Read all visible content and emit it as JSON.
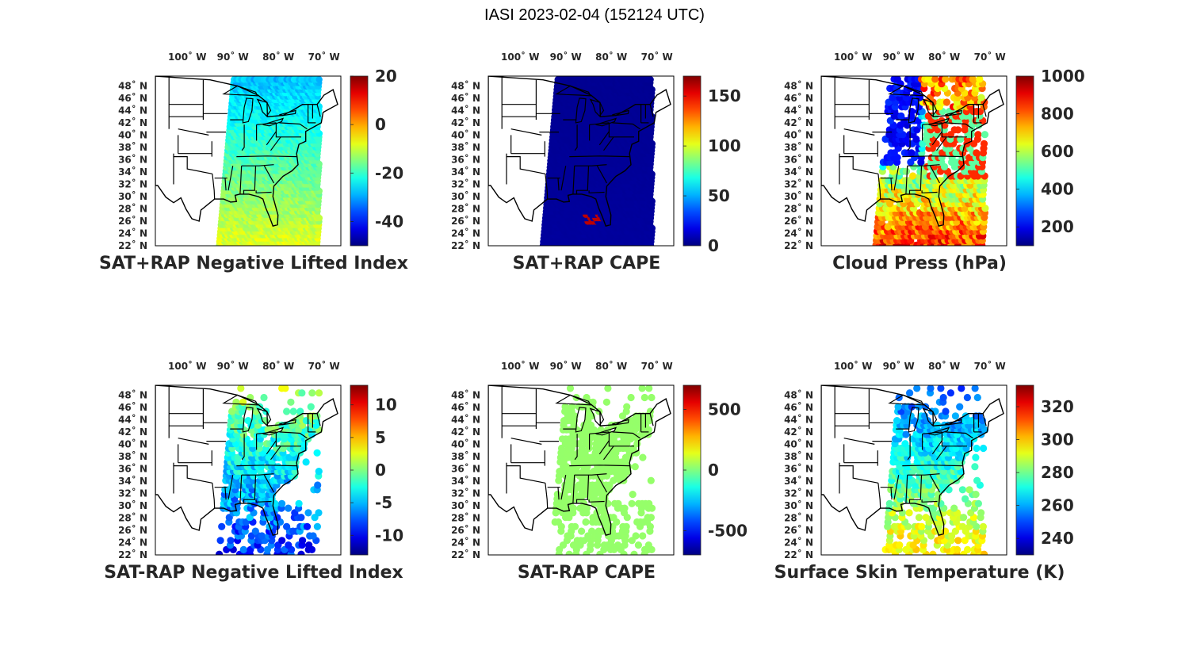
{
  "figure": {
    "title": "IASI 2023-02-04 (152124 UTC)"
  },
  "map_axes": {
    "lon_labels": [
      "100˚ W",
      "90˚ W",
      "80˚ W",
      "70˚ W"
    ],
    "lat_labels": [
      "48˚ N",
      "46˚ N",
      "44˚ N",
      "42˚ N",
      "40˚ N",
      "38˚ N",
      "36˚ N",
      "34˚ N",
      "32˚ N",
      "30˚ N",
      "28˚ N",
      "26˚ N",
      "24˚ N",
      "22˚ N"
    ]
  },
  "panels": [
    {
      "title": "SAT+RAP Negative Lifted Index",
      "colormap": "jet",
      "colorbar": {
        "range": [
          -50,
          20
        ],
        "ticks": [
          "20",
          "0",
          "-20",
          "-40"
        ]
      },
      "field": {
        "coverage": "swath",
        "lon_range": [
          -93,
          -71
        ],
        "lat_range": [
          22,
          49
        ],
        "typical_value": -18,
        "north_value": -28,
        "south_value": -8,
        "hot_value": null
      }
    },
    {
      "title": "SAT+RAP CAPE",
      "colormap": "jet",
      "colorbar": {
        "range": [
          0,
          170
        ],
        "ticks": [
          "150",
          "100",
          "50",
          "0"
        ]
      },
      "field": {
        "coverage": "swath",
        "lon_range": [
          -95,
          -71
        ],
        "lat_range": [
          22,
          49
        ],
        "typical_value": 3,
        "north_value": 3,
        "south_value": 5,
        "hot_value": 160
      }
    },
    {
      "title": "Cloud Press (hPa)",
      "colormap": "jet",
      "colorbar": {
        "range": [
          100,
          1000
        ],
        "ticks": [
          "1000",
          "800",
          "600",
          "400",
          "200"
        ]
      },
      "field": {
        "coverage": "clouds",
        "lon_range": [
          -95,
          -71
        ],
        "lat_range": [
          22,
          49
        ],
        "typical_value": 820,
        "north_value": 200,
        "south_value": 850,
        "hot_value": null
      }
    },
    {
      "title": "SAT-RAP Negative Lifted Index",
      "colormap": "jet",
      "colorbar": {
        "range": [
          -13,
          13
        ],
        "ticks": [
          "10",
          "5",
          "0",
          "-5",
          "-10"
        ]
      },
      "field": {
        "coverage": "land",
        "lon_range": [
          -93,
          -71
        ],
        "lat_range": [
          22,
          49
        ],
        "typical_value": -1,
        "north_value": 1,
        "south_value": -9,
        "hot_value": null
      }
    },
    {
      "title": "SAT-RAP CAPE",
      "colormap": "jet",
      "colorbar": {
        "range": [
          -700,
          700
        ],
        "ticks": [
          "500",
          "0",
          "-500"
        ]
      },
      "field": {
        "coverage": "land",
        "lon_range": [
          -93,
          -71
        ],
        "lat_range": [
          22,
          49
        ],
        "typical_value": 30,
        "north_value": 30,
        "south_value": 30,
        "hot_value": null
      }
    },
    {
      "title": "Surface Skin Temperature (K)",
      "colormap": "jet",
      "colorbar": {
        "range": [
          230,
          333
        ],
        "ticks": [
          "320",
          "300",
          "280",
          "260",
          "240"
        ]
      },
      "field": {
        "coverage": "land",
        "lon_range": [
          -93,
          -71
        ],
        "lat_range": [
          22,
          49
        ],
        "typical_value": 268,
        "north_value": 250,
        "south_value": 298,
        "hot_value": null
      }
    }
  ]
}
